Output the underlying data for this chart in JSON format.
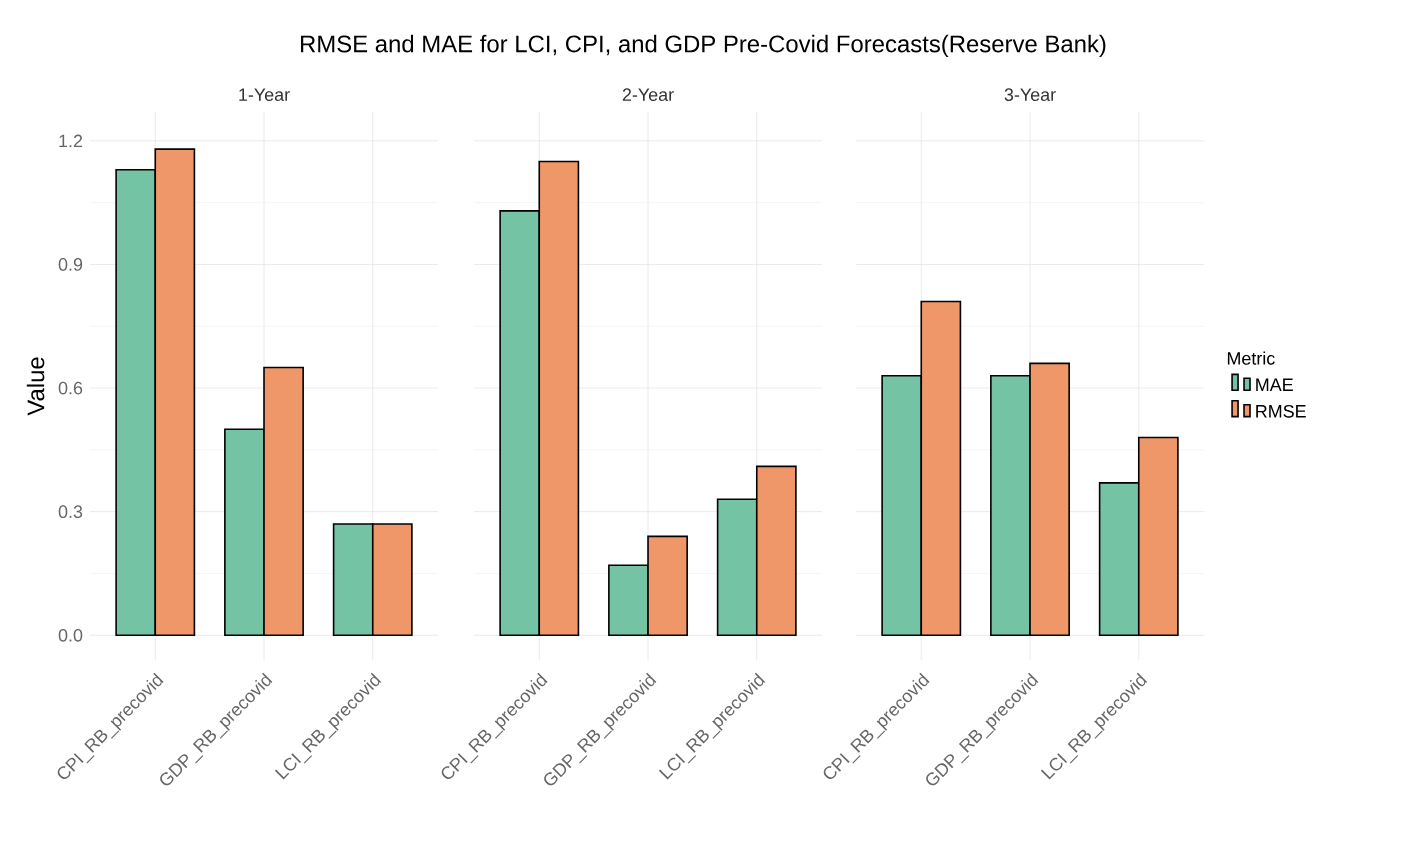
{
  "chart_data": [
    {
      "type": "bar",
      "title": "RMSE and MAE for LCI, CPI, and GDP Pre-Covid Forecasts(Reserve Bank)",
      "subtitle": "1-Year",
      "ylabel": "Value",
      "categories": [
        "CPI_RB_precovid",
        "GDP_RB_precovid",
        "LCI_RB_precovid"
      ],
      "series": [
        {
          "color": "#74c3a4",
          "values": [
            1.13,
            0.5,
            0.27
          ]
        },
        {
          "color": "#f0976a",
          "values": [
            1.18,
            0.65,
            0.27
          ]
        }
      ],
      "ylim": [
        -0.06,
        1.27
      ],
      "yticks": [
        {
          "value": 0,
          "label": "0.0"
        },
        0.3,
        0.6,
        0.9,
        1.2
      ],
      "grid": true,
      "legend": false
    },
    {
      "type": "bar",
      "subtitle": "2-Year",
      "categories": [
        "CPI_RB_precovid",
        "GDP_RB_precovid",
        "LCI_RB_precovid"
      ],
      "series": [
        {
          "color": "#74c3a4",
          "values": [
            1.03,
            0.17,
            0.33
          ]
        },
        {
          "color": "#f0976a",
          "values": [
            1.15,
            0.24,
            0.41
          ]
        }
      ],
      "ylim": [
        -0.06,
        1.27
      ],
      "yticks": [
        {
          "value": 0,
          "label": null
        },
        {
          "value": 0.3,
          "label": null
        },
        {
          "value": 0.6,
          "label": null
        },
        {
          "value": 0.9,
          "label": null
        },
        {
          "value": 1.2,
          "label": null
        }
      ],
      "grid": true,
      "legend": false,
      "tick_labels": "x"
    },
    {
      "type": "bar",
      "subtitle": "3-Year",
      "legend_title": "Metric",
      "categories": [
        "CPI_RB_precovid",
        "GDP_RB_precovid",
        "LCI_RB_precovid"
      ],
      "series": [
        {
          "name": "MAE",
          "color": "#74c3a4",
          "values": [
            0.63,
            0.63,
            0.37
          ]
        },
        {
          "name": "RMSE",
          "color": "#f0976a",
          "values": [
            0.81,
            0.66,
            0.48
          ]
        }
      ],
      "ylim": [
        -0.06,
        1.27
      ],
      "yticks": [
        {
          "value": 0,
          "label": null
        },
        {
          "value": 0.3,
          "label": null
        },
        {
          "value": 0.6,
          "label": null
        },
        {
          "value": 0.9,
          "label": null
        },
        {
          "value": 1.2,
          "label": null
        }
      ],
      "grid": true,
      "legend": "right",
      "tick_labels": "x"
    }
  ]
}
